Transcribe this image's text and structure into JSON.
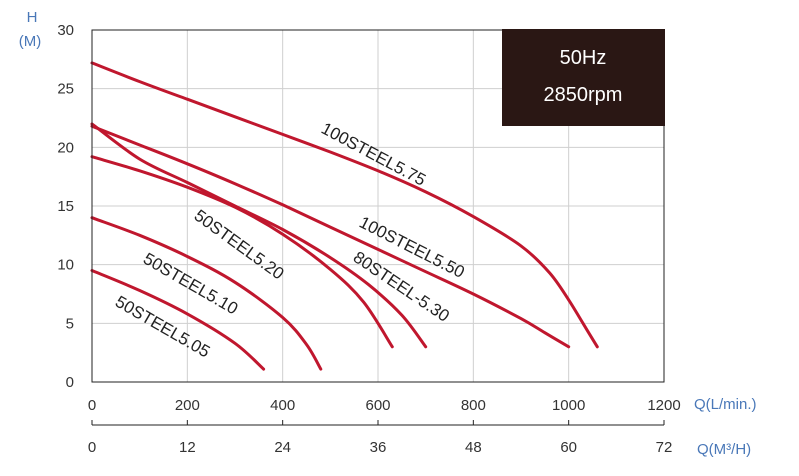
{
  "chart_data": {
    "type": "line",
    "title": "",
    "badge": {
      "frequency": "50Hz",
      "speed": "2850rpm"
    },
    "y_axis": {
      "label_line1": "H",
      "label_line2": "(M)",
      "range": [
        0,
        30
      ],
      "ticks": [
        "0",
        "5",
        "10",
        "15",
        "20",
        "25",
        "30"
      ]
    },
    "x_axis": {
      "label": "Q(L/min.)",
      "range": [
        0,
        1200
      ],
      "ticks": [
        "0",
        "200",
        "400",
        "600",
        "800",
        "1000",
        "1200"
      ]
    },
    "x_axis_secondary": {
      "label": "Q(M³/H)",
      "range": [
        0,
        72
      ],
      "ticks": [
        "0",
        "12",
        "24",
        "36",
        "48",
        "60",
        "72"
      ]
    },
    "grid": true,
    "line_color": "#c0172e",
    "series": [
      {
        "name": "100STEEL5.75",
        "x": [
          0,
          100,
          200,
          300,
          400,
          500,
          600,
          700,
          800,
          900,
          960,
          1000,
          1030,
          1060
        ],
        "y": [
          27.2,
          25.6,
          24.1,
          22.6,
          21.1,
          19.6,
          18.0,
          16.2,
          14.1,
          11.6,
          9.3,
          7.0,
          5.0,
          3.0
        ]
      },
      {
        "name": "100STEEL5.50",
        "x": [
          0,
          100,
          200,
          300,
          400,
          500,
          600,
          700,
          800,
          900,
          950,
          1000
        ],
        "y": [
          21.8,
          20.2,
          18.6,
          16.9,
          15.1,
          13.2,
          11.3,
          9.4,
          7.5,
          5.4,
          4.2,
          3.0
        ]
      },
      {
        "name": "80STEEL-5.30",
        "x": [
          0,
          100,
          200,
          300,
          400,
          500,
          580,
          650,
          700
        ],
        "y": [
          22.0,
          19.0,
          17.0,
          15.0,
          13.0,
          10.6,
          8.3,
          5.7,
          3.0
        ]
      },
      {
        "name": "50STEEL5.20",
        "x": [
          0,
          100,
          200,
          300,
          400,
          500,
          570,
          630
        ],
        "y": [
          19.2,
          18.0,
          16.6,
          14.9,
          12.6,
          9.6,
          6.8,
          3.0
        ]
      },
      {
        "name": "50STEEL5.10",
        "x": [
          0,
          100,
          200,
          300,
          400,
          450,
          480
        ],
        "y": [
          14.0,
          12.5,
          10.7,
          8.5,
          5.5,
          3.2,
          1.1
        ]
      },
      {
        "name": "50STEEL5.05",
        "x": [
          0,
          100,
          200,
          300,
          360
        ],
        "y": [
          9.5,
          7.8,
          5.8,
          3.3,
          1.1
        ]
      }
    ]
  }
}
